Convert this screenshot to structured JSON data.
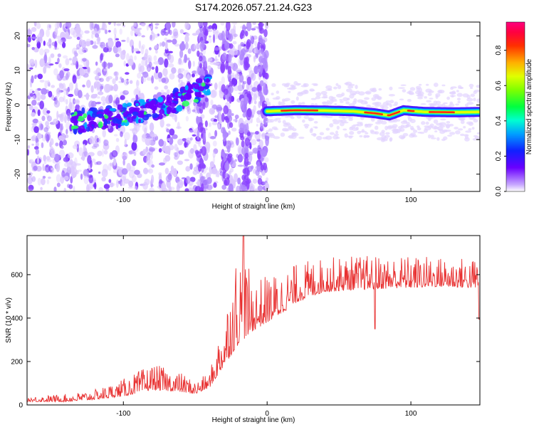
{
  "chart_data": [
    {
      "type": "heatmap",
      "title": "S174.2026.057.21.24.G23",
      "xlabel": "Height of straight line (km)",
      "ylabel": "Frequency (Hz)",
      "xlim": [
        -167,
        148
      ],
      "ylim": [
        -25,
        24
      ],
      "xticks": [
        -100,
        0,
        100
      ],
      "yticks": [
        20,
        10,
        0,
        -10,
        -20
      ],
      "colorbar": {
        "label": "Normalized spectral amplitude",
        "range": [
          0,
          0.96
        ],
        "ticks": [
          0.0,
          0.2,
          0.4,
          0.6,
          0.8
        ],
        "colors": [
          "#c8a8ff",
          "#6a00ff",
          "#1020ff",
          "#00c0ff",
          "#00ffa0",
          "#30ff00",
          "#d0ff00",
          "#ffa000",
          "#ff2000",
          "#ff0080"
        ]
      },
      "ridge": {
        "description_x_km": [
          0,
          20,
          40,
          60,
          75,
          85,
          95,
          100,
          110,
          130,
          148
        ],
        "frequency_hz": [
          -1.8,
          -1.5,
          -1.6,
          -1.8,
          -2.4,
          -3.0,
          -1.5,
          -1.7,
          -2.0,
          -2.1,
          -2.0
        ],
        "peak_amplitude": [
          0.7,
          0.9,
          0.85,
          0.8,
          0.85,
          0.85,
          0.8,
          0.85,
          0.9,
          0.8,
          0.7
        ]
      },
      "scatter_band": {
        "x_km": [
          -135,
          -120,
          -105,
          -90,
          -80,
          -70,
          -60,
          -50,
          -40
        ],
        "frequency_hz": [
          -5,
          -4,
          -3.5,
          -2,
          -1,
          0,
          2,
          4,
          6
        ]
      }
    },
    {
      "type": "line",
      "xlabel": "Height of straight line (km)",
      "ylabel": "SNR (10 * v/v)",
      "xlim": [
        -167,
        148
      ],
      "ylim": [
        0,
        780
      ],
      "xticks": [
        -100,
        0,
        100
      ],
      "yticks": [
        0,
        200,
        400,
        600
      ],
      "series": [
        {
          "name": "SNR",
          "color": "#e83030",
          "envelope_x_km": [
            -167,
            -140,
            -120,
            -100,
            -80,
            -60,
            -50,
            -40,
            -30,
            -20,
            -10,
            0,
            10,
            20,
            30,
            40,
            60,
            80,
            100,
            120,
            140,
            148
          ],
          "baseline": [
            15,
            15,
            25,
            40,
            70,
            60,
            50,
            80,
            180,
            280,
            340,
            380,
            420,
            470,
            500,
            520,
            530,
            535,
            540,
            545,
            540,
            540
          ],
          "peak": [
            40,
            50,
            70,
            120,
            190,
            150,
            110,
            150,
            420,
            760,
            580,
            600,
            620,
            650,
            670,
            680,
            690,
            690,
            690,
            685,
            680,
            680
          ]
        }
      ]
    }
  ]
}
